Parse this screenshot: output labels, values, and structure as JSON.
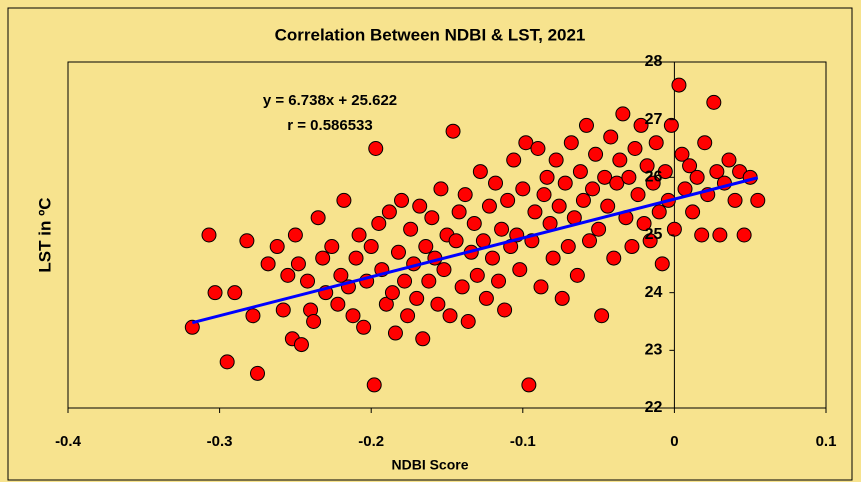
{
  "chart_data": {
    "type": "scatter",
    "title": "Correlation Between NDBI & LST, 2021",
    "x_label": "NDBI Score",
    "y_label": "LST in ºC",
    "annotations": [
      "y = 6.738x + 25.622",
      "r = 0.586533"
    ],
    "trendline": {
      "slope": 6.738,
      "intercept": 25.622,
      "color": "#0000ff"
    },
    "color": "#ff0000",
    "xlim": [
      -0.4,
      0.1
    ],
    "xticks": [
      -0.4,
      -0.3,
      -0.2,
      -0.1,
      0,
      0.1
    ],
    "ylim": [
      22,
      28
    ],
    "yticks": [
      22,
      23,
      24,
      25,
      26,
      27,
      28
    ],
    "x": [
      -0.318,
      -0.307,
      -0.303,
      -0.295,
      -0.29,
      -0.282,
      -0.278,
      -0.275,
      -0.268,
      -0.262,
      -0.258,
      -0.255,
      -0.252,
      -0.25,
      -0.248,
      -0.246,
      -0.242,
      -0.24,
      -0.238,
      -0.235,
      -0.232,
      -0.23,
      -0.226,
      -0.222,
      -0.22,
      -0.218,
      -0.215,
      -0.212,
      -0.21,
      -0.208,
      -0.205,
      -0.203,
      -0.2,
      -0.198,
      -0.197,
      -0.195,
      -0.193,
      -0.19,
      -0.188,
      -0.186,
      -0.184,
      -0.182,
      -0.18,
      -0.178,
      -0.176,
      -0.174,
      -0.172,
      -0.17,
      -0.168,
      -0.166,
      -0.164,
      -0.162,
      -0.16,
      -0.158,
      -0.156,
      -0.154,
      -0.152,
      -0.15,
      -0.148,
      -0.146,
      -0.144,
      -0.142,
      -0.14,
      -0.138,
      -0.136,
      -0.134,
      -0.132,
      -0.13,
      -0.128,
      -0.126,
      -0.124,
      -0.122,
      -0.12,
      -0.118,
      -0.116,
      -0.114,
      -0.112,
      -0.11,
      -0.108,
      -0.106,
      -0.104,
      -0.102,
      -0.1,
      -0.098,
      -0.096,
      -0.094,
      -0.092,
      -0.09,
      -0.088,
      -0.086,
      -0.084,
      -0.082,
      -0.08,
      -0.078,
      -0.076,
      -0.074,
      -0.072,
      -0.07,
      -0.068,
      -0.066,
      -0.064,
      -0.062,
      -0.06,
      -0.058,
      -0.056,
      -0.054,
      -0.052,
      -0.05,
      -0.048,
      -0.046,
      -0.044,
      -0.042,
      -0.04,
      -0.038,
      -0.036,
      -0.034,
      -0.032,
      -0.03,
      -0.028,
      -0.026,
      -0.024,
      -0.022,
      -0.02,
      -0.018,
      -0.016,
      -0.014,
      -0.012,
      -0.01,
      -0.008,
      -0.006,
      -0.004,
      -0.002,
      0.0,
      0.003,
      0.005,
      0.007,
      0.01,
      0.012,
      0.015,
      0.018,
      0.02,
      0.022,
      0.026,
      0.028,
      0.03,
      0.033,
      0.036,
      0.04,
      0.043,
      0.046,
      0.05,
      0.055
    ],
    "values": [
      23.4,
      25.0,
      24.0,
      22.8,
      24.0,
      24.9,
      23.6,
      22.6,
      24.5,
      24.8,
      23.7,
      24.3,
      23.2,
      25.0,
      24.5,
      23.1,
      24.2,
      23.7,
      23.5,
      25.3,
      24.6,
      24.0,
      24.8,
      23.8,
      24.3,
      25.6,
      24.1,
      23.6,
      24.6,
      25.0,
      23.4,
      24.2,
      24.8,
      22.4,
      26.5,
      25.2,
      24.4,
      23.8,
      25.4,
      24.0,
      23.3,
      24.7,
      25.6,
      24.2,
      23.6,
      25.1,
      24.5,
      23.9,
      25.5,
      23.2,
      24.8,
      24.2,
      25.3,
      24.6,
      23.8,
      25.8,
      24.4,
      25.0,
      23.6,
      26.8,
      24.9,
      25.4,
      24.1,
      25.7,
      23.5,
      24.7,
      25.2,
      24.3,
      26.1,
      24.9,
      23.9,
      25.5,
      24.6,
      25.9,
      24.2,
      25.1,
      23.7,
      25.6,
      24.8,
      26.3,
      25.0,
      24.4,
      25.8,
      26.6,
      22.4,
      24.9,
      25.4,
      26.5,
      24.1,
      25.7,
      26.0,
      25.2,
      24.6,
      26.3,
      25.5,
      23.9,
      25.9,
      24.8,
      26.6,
      25.3,
      24.3,
      26.1,
      25.6,
      26.9,
      24.9,
      25.8,
      26.4,
      25.1,
      23.6,
      26.0,
      25.5,
      26.7,
      24.6,
      25.9,
      26.3,
      27.1,
      25.3,
      26.0,
      24.8,
      26.5,
      25.7,
      26.9,
      25.2,
      26.2,
      24.9,
      25.9,
      26.6,
      25.4,
      24.5,
      26.1,
      25.6,
      26.9,
      25.1,
      27.6,
      26.4,
      25.8,
      26.2,
      25.4,
      26.0,
      25.0,
      26.6,
      25.7,
      27.3,
      26.1,
      25.0,
      25.9,
      26.3,
      25.6,
      26.1,
      25.0,
      26.0,
      25.6
    ]
  }
}
